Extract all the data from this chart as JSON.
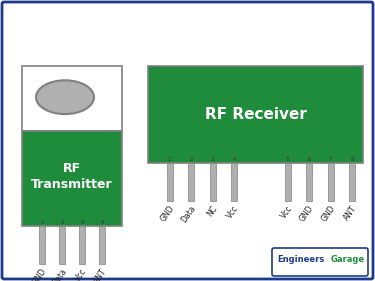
{
  "bg_color": "#ffffff",
  "border_color": "#1e3a8a",
  "green_color": "#1f8c3b",
  "white_color": "#ffffff",
  "gray_color": "#b0b0b0",
  "gray_dark": "#808080",
  "pin_color": "#b0b0b0",
  "transmitter_label": "RF\nTransmitter",
  "receiver_label": "RF Receiver",
  "watermark_engineers": "Engineers",
  "watermark_garage": "Garage",
  "tx_pins": [
    "GND",
    "Data",
    "Vcc",
    "ANT"
  ],
  "rx_pins_left": [
    "GND",
    "Data",
    "NC",
    "Vcc"
  ],
  "rx_pins_right": [
    "Vcc",
    "GND",
    "GND",
    "ANT"
  ]
}
